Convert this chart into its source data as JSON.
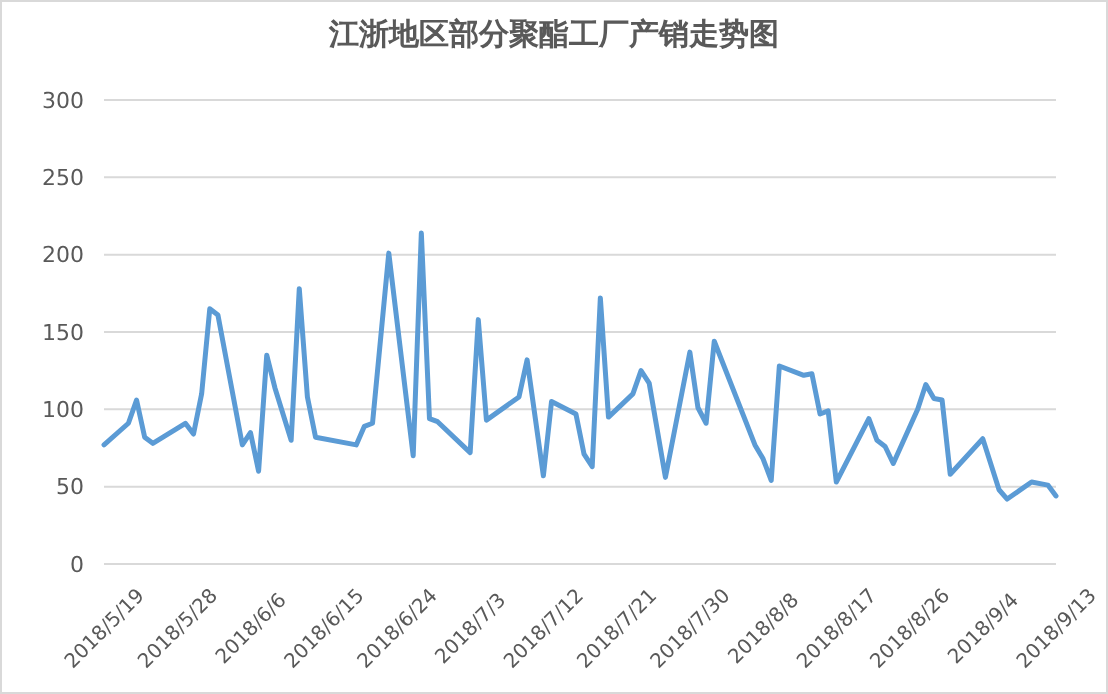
{
  "chart_data": {
    "type": "line",
    "title": "江浙地区部分聚酯工厂产销走势图",
    "x": [
      "2018-05-19",
      "2018-05-22",
      "2018-05-23",
      "2018-05-24",
      "2018-05-25",
      "2018-05-29",
      "2018-05-30",
      "2018-05-31",
      "2018-06-01",
      "2018-06-02",
      "2018-06-05",
      "2018-06-06",
      "2018-06-07",
      "2018-06-08",
      "2018-06-09",
      "2018-06-11",
      "2018-06-12",
      "2018-06-13",
      "2018-06-14",
      "2018-06-19",
      "2018-06-20",
      "2018-06-21",
      "2018-06-23",
      "2018-06-26",
      "2018-06-27",
      "2018-06-28",
      "2018-06-29",
      "2018-07-03",
      "2018-07-04",
      "2018-07-05",
      "2018-07-09",
      "2018-07-10",
      "2018-07-12",
      "2018-07-13",
      "2018-07-16",
      "2018-07-17",
      "2018-07-18",
      "2018-07-19",
      "2018-07-20",
      "2018-07-23",
      "2018-07-24",
      "2018-07-25",
      "2018-07-27",
      "2018-07-30",
      "2018-07-31",
      "2018-08-01",
      "2018-08-02",
      "2018-08-07",
      "2018-08-08",
      "2018-08-09",
      "2018-08-10",
      "2018-08-13",
      "2018-08-14",
      "2018-08-15",
      "2018-08-16",
      "2018-08-17",
      "2018-08-21",
      "2018-08-22",
      "2018-08-23",
      "2018-08-24",
      "2018-08-27",
      "2018-08-28",
      "2018-08-29",
      "2018-08-30",
      "2018-08-31",
      "2018-09-04",
      "2018-09-06",
      "2018-09-07",
      "2018-09-10",
      "2018-09-12",
      "2018-09-13"
    ],
    "series": [
      {
        "color": "#5b9bd5",
        "values": [
          77,
          91,
          106,
          82,
          78,
          91,
          84,
          110,
          165,
          161,
          77,
          85,
          60,
          135,
          114,
          80,
          178,
          108,
          82,
          77,
          89,
          91,
          201,
          70,
          214,
          94,
          92,
          72,
          158,
          93,
          108,
          132,
          57,
          105,
          97,
          71,
          63,
          172,
          95,
          110,
          125,
          117,
          56,
          137,
          101,
          91,
          144,
          77,
          68,
          54,
          128,
          122,
          123,
          97,
          99,
          53,
          94,
          80,
          76,
          65,
          100,
          116,
          107,
          106,
          58,
          81,
          48,
          42,
          53,
          51,
          44
        ]
      }
    ],
    "xlim": [
      "2018-05-19",
      "2018-09-13"
    ],
    "xticks": [
      {
        "value": "2018-05-19",
        "label": "2018/5/19"
      },
      {
        "value": "2018-05-28",
        "label": "2018/5/28"
      },
      {
        "value": "2018-06-06",
        "label": "2018/6/6"
      },
      {
        "value": "2018-06-15",
        "label": "2018/6/15"
      },
      {
        "value": "2018-06-24",
        "label": "2018/6/24"
      },
      {
        "value": "2018-07-03",
        "label": "2018/7/3"
      },
      {
        "value": "2018-07-12",
        "label": "2018/7/12"
      },
      {
        "value": "2018-07-21",
        "label": "2018/7/21"
      },
      {
        "value": "2018-07-30",
        "label": "2018/7/30"
      },
      {
        "value": "2018-08-08",
        "label": "2018/8/8"
      },
      {
        "value": "2018-08-17",
        "label": "2018/8/17"
      },
      {
        "value": "2018-08-26",
        "label": "2018/8/26"
      },
      {
        "value": "2018-09-04",
        "label": "2018/9/4"
      },
      {
        "value": "2018-09-13",
        "label": "2018/9/13"
      }
    ],
    "ylim": [
      0,
      300
    ],
    "yticks": [
      0,
      50,
      100,
      150,
      200,
      250,
      300
    ],
    "grid": "y",
    "marker": "none",
    "line_style": "solid"
  }
}
